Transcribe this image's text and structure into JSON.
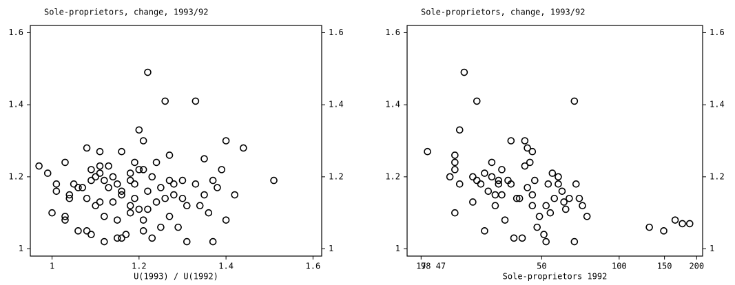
{
  "chart_data": [
    {
      "type": "scatter",
      "title": "Sole-proprietors, change, 1993/92",
      "xlabel": "U(1993) / U(1992)",
      "xlim": [
        0.95,
        1.62
      ],
      "ylim": [
        0.98,
        1.62
      ],
      "xticks": [
        1,
        1.2,
        1.4,
        1.6
      ],
      "yticks": [
        1,
        1.2,
        1.4,
        1.6
      ],
      "color": "#000000",
      "x": [
        0.97,
        0.99,
        1.01,
        1.03,
        1.01,
        1.0,
        1.03,
        1.03,
        1.04,
        1.04,
        1.05,
        1.06,
        1.07,
        1.06,
        1.08,
        1.08,
        1.09,
        1.09,
        1.09,
        1.1,
        1.11,
        1.11,
        1.11,
        1.12,
        1.11,
        1.12,
        1.12,
        1.13,
        1.14,
        1.15,
        1.15,
        1.16,
        1.16,
        1.16,
        1.17,
        1.18,
        1.18,
        1.18,
        1.18,
        1.19,
        1.19,
        1.2,
        1.2,
        1.2,
        1.21,
        1.21,
        1.21,
        1.21,
        1.22,
        1.22,
        1.22,
        1.23,
        1.23,
        1.24,
        1.24,
        1.25,
        1.26,
        1.26,
        1.27,
        1.27,
        1.28,
        1.28,
        1.29,
        1.3,
        1.3,
        1.31,
        1.33,
        1.33,
        1.34,
        1.35,
        1.31,
        1.36,
        1.37,
        1.38,
        1.39,
        1.35,
        1.4,
        1.4,
        1.42,
        1.44,
        1.51,
        1.37,
        1.15,
        1.16,
        1.08,
        1.1,
        1.13,
        1.14,
        1.19,
        1.25,
        1.27
      ],
      "values": [
        1.23,
        1.21,
        1.18,
        1.24,
        1.16,
        1.1,
        1.09,
        1.08,
        1.15,
        1.14,
        1.18,
        1.17,
        1.17,
        1.05,
        1.28,
        1.05,
        1.04,
        1.22,
        1.19,
        1.2,
        1.21,
        1.27,
        1.23,
        1.19,
        1.13,
        1.09,
        1.02,
        1.17,
        1.13,
        1.03,
        1.08,
        1.27,
        1.15,
        1.03,
        1.04,
        1.21,
        1.19,
        1.12,
        1.1,
        1.14,
        1.24,
        1.11,
        1.22,
        1.33,
        1.3,
        1.22,
        1.05,
        1.08,
        1.49,
        1.16,
        1.11,
        1.2,
        1.03,
        1.24,
        1.13,
        1.06,
        1.41,
        1.14,
        1.09,
        1.26,
        1.15,
        1.18,
        1.06,
        1.14,
        1.19,
        1.12,
        1.41,
        1.18,
        1.12,
        1.15,
        1.02,
        1.1,
        1.02,
        1.17,
        1.22,
        1.25,
        1.3,
        1.08,
        1.15,
        1.28,
        1.19,
        1.19,
        1.18,
        1.16,
        1.14,
        1.12,
        1.23,
        1.2,
        1.18,
        1.17,
        1.19
      ]
    },
    {
      "type": "scatter",
      "title": "Sole-proprietors, change, 1993/92",
      "xlabel": "Sole-proprietors 1992",
      "log_x": true,
      "xlim": [
        15,
        211
      ],
      "ylim": [
        0.98,
        1.62
      ],
      "xticks": [
        17,
        50,
        100,
        150,
        200
      ],
      "yticks": [
        1,
        1.2,
        1.4,
        1.6
      ],
      "color": "#000000",
      "annotations": [
        "98 47"
      ],
      "x": [
        18,
        22,
        23,
        23,
        24,
        23,
        23,
        24,
        25,
        27,
        27,
        28,
        29,
        30,
        30,
        31,
        32,
        33,
        33,
        34,
        34,
        35,
        36,
        37,
        38,
        39,
        40,
        42,
        43,
        43,
        44,
        44,
        46,
        46,
        47,
        48,
        49,
        51,
        52,
        53,
        55,
        56,
        58,
        60,
        62,
        64,
        67,
        67,
        68,
        70,
        72,
        75,
        131,
        149,
        165,
        176,
        188,
        54,
        45,
        41,
        38,
        32,
        28,
        35,
        58,
        61,
        52,
        46
      ],
      "values": [
        1.27,
        1.2,
        1.24,
        1.22,
        1.18,
        1.26,
        1.1,
        1.33,
        1.49,
        1.13,
        1.2,
        1.41,
        1.18,
        1.21,
        1.05,
        1.16,
        1.24,
        1.12,
        1.15,
        1.18,
        1.19,
        1.22,
        1.08,
        1.19,
        1.3,
        1.03,
        1.14,
        1.03,
        1.23,
        1.3,
        1.17,
        1.28,
        1.15,
        1.12,
        1.19,
        1.06,
        1.09,
        1.04,
        1.12,
        1.18,
        1.21,
        1.14,
        1.18,
        1.16,
        1.11,
        1.14,
        1.02,
        1.41,
        1.18,
        1.14,
        1.12,
        1.09,
        1.06,
        1.05,
        1.08,
        1.07,
        1.07,
        1.1,
        1.24,
        1.14,
        1.18,
        1.2,
        1.19,
        1.15,
        1.2,
        1.13,
        1.02,
        1.27
      ]
    }
  ]
}
